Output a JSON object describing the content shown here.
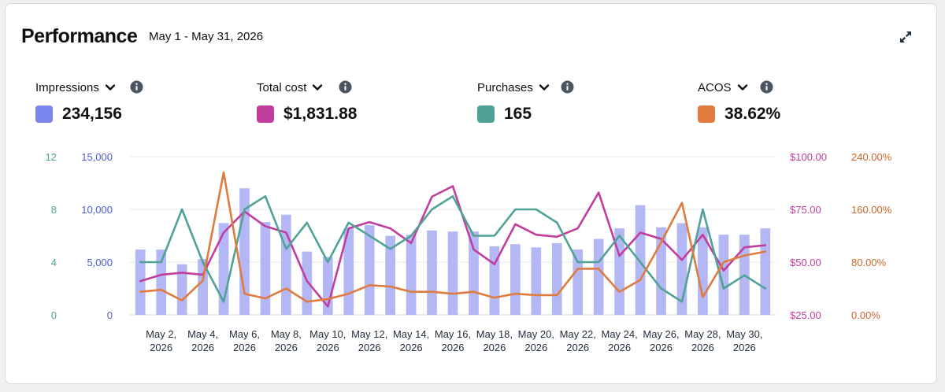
{
  "header": {
    "title": "Performance",
    "date_range": "May 1 - May 31, 2026"
  },
  "metrics": [
    {
      "label": "Impressions",
      "value": "234,156",
      "color": "#7b86f0"
    },
    {
      "label": "Total cost",
      "value": "$1,831.88",
      "color": "#c13d9e"
    },
    {
      "label": "Purchases",
      "value": "165",
      "color": "#4fa295"
    },
    {
      "label": "ACOS",
      "value": "38.62%",
      "color": "#e07b3f"
    }
  ],
  "icons": {
    "expand": "expand-icon",
    "chevron": "chevron-down-icon",
    "info": "info-icon"
  },
  "chart_data": {
    "type": "bar",
    "categories": [
      "May 1",
      "May 2",
      "May 3",
      "May 4",
      "May 5",
      "May 6",
      "May 7",
      "May 8",
      "May 9",
      "May 10",
      "May 11",
      "May 12",
      "May 13",
      "May 14",
      "May 15",
      "May 16",
      "May 17",
      "May 18",
      "May 19",
      "May 20",
      "May 21",
      "May 22",
      "May 23",
      "May 24",
      "May 25",
      "May 26",
      "May 27",
      "May 28",
      "May 29",
      "May 30",
      "May 31"
    ],
    "x_tick_labels": [
      [
        "May 2,",
        "2026"
      ],
      [
        "May 4,",
        "2026"
      ],
      [
        "May 6,",
        "2026"
      ],
      [
        "May 8,",
        "2026"
      ],
      [
        "May 10,",
        "2026"
      ],
      [
        "May 12,",
        "2026"
      ],
      [
        "May 14,",
        "2026"
      ],
      [
        "May 16,",
        "2026"
      ],
      [
        "May 18,",
        "2026"
      ],
      [
        "May 20,",
        "2026"
      ],
      [
        "May 22,",
        "2026"
      ],
      [
        "May 24,",
        "2026"
      ],
      [
        "May 26,",
        "2026"
      ],
      [
        "May 28,",
        "2026"
      ],
      [
        "May 30,",
        "2026"
      ]
    ],
    "axes": {
      "purchases": {
        "ticks": [
          "0",
          "4",
          "8",
          "12"
        ],
        "range": [
          0,
          12
        ],
        "color": "#4fa295"
      },
      "impressions": {
        "ticks": [
          "0",
          "5,000",
          "10,000",
          "15,000"
        ],
        "range": [
          0,
          15000
        ],
        "color": "#4f5bd5"
      },
      "cost": {
        "ticks": [
          "$25.00",
          "$50.00",
          "$75.00",
          "$100.00"
        ],
        "range": [
          25,
          100
        ],
        "color": "#c13d9e"
      },
      "acos": {
        "ticks": [
          "0.00%",
          "80.00%",
          "160.00%",
          "240.00%"
        ],
        "range": [
          0,
          240
        ],
        "color": "#c9682e"
      }
    },
    "series": [
      {
        "name": "Impressions",
        "type": "bar",
        "axis": "impressions",
        "color": "#b3b8f5",
        "values": [
          6200,
          6200,
          4800,
          5300,
          8700,
          12000,
          8800,
          9500,
          6000,
          5500,
          8200,
          8500,
          7500,
          7600,
          8000,
          7900,
          7900,
          6500,
          6700,
          6400,
          6800,
          6200,
          7200,
          8200,
          10400,
          8300,
          8700,
          8300,
          7600,
          7600,
          8200
        ]
      },
      {
        "name": "Total cost",
        "type": "line",
        "axis": "cost",
        "color": "#c13d9e",
        "values": [
          41,
          44,
          45,
          44,
          64,
          74,
          67,
          64,
          41,
          29,
          66,
          69,
          66,
          59,
          81,
          86,
          56,
          49,
          68,
          63,
          62,
          66,
          83,
          53,
          64,
          61,
          51,
          63,
          46,
          57,
          58
        ]
      },
      {
        "name": "Purchases",
        "type": "line",
        "axis": "purchases",
        "color": "#4fa295",
        "values": [
          4,
          4,
          8,
          4,
          1,
          8,
          9,
          5,
          7,
          4,
          7,
          6,
          5,
          6,
          8,
          9,
          6,
          6,
          8,
          8,
          7,
          4,
          4,
          6,
          4,
          2,
          1,
          8,
          2,
          3,
          2
        ]
      },
      {
        "name": "ACOS",
        "type": "line",
        "axis": "acos",
        "color": "#e07b3f",
        "values": [
          35,
          38,
          22,
          52,
          216,
          32,
          25,
          40,
          20,
          24,
          32,
          45,
          43,
          35,
          35,
          32,
          35,
          26,
          32,
          30,
          30,
          70,
          70,
          35,
          53,
          110,
          170,
          27,
          80,
          90,
          96
        ]
      }
    ],
    "grid": true,
    "legend": "top"
  }
}
